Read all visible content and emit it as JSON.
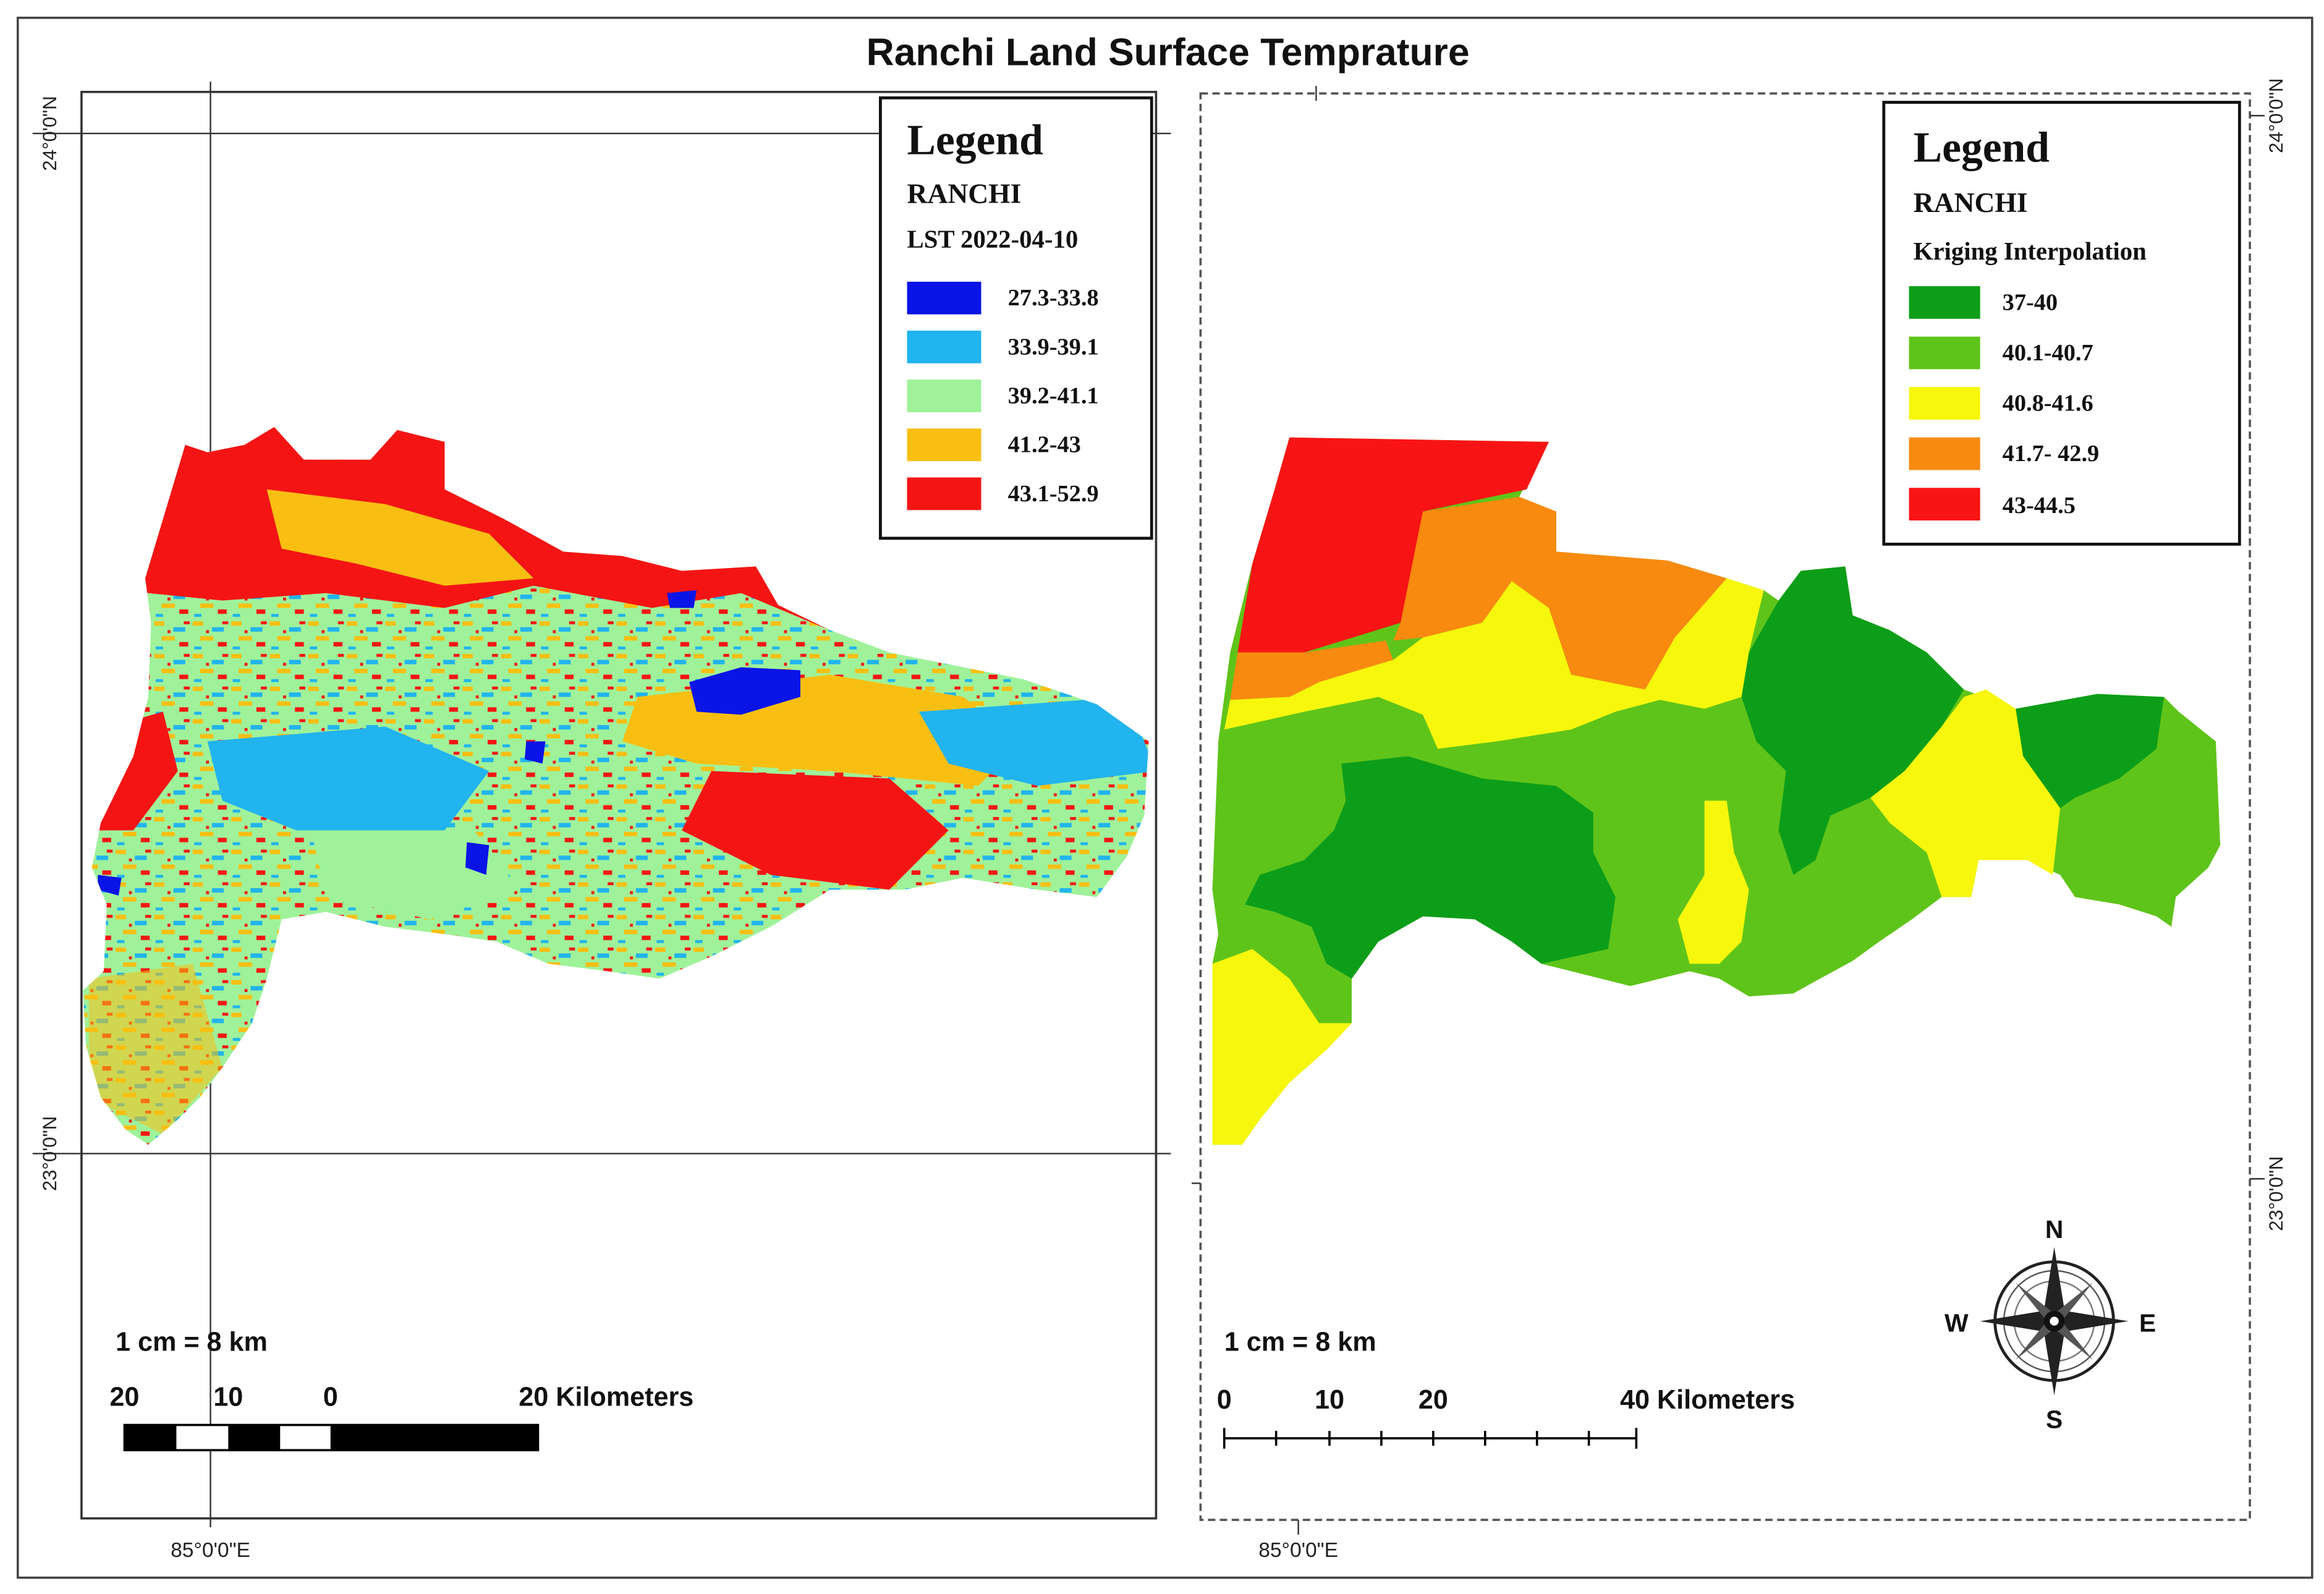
{
  "title": "Ranchi Land Surface Temprature",
  "left_map": {
    "legend": {
      "heading": "Legend",
      "place": "RANCHI",
      "subtitle": "LST 2022-04-10",
      "classes": [
        {
          "label": "27.3-33.8",
          "color": "#0a14e6"
        },
        {
          "label": "33.9-39.1",
          "color": "#21b4ee"
        },
        {
          "label": "39.2-41.1",
          "color": "#9ff29a"
        },
        {
          "label": "41.2-43",
          "color": "#f8bf12"
        },
        {
          "label": "43.1-52.9",
          "color": "#f41414"
        }
      ]
    },
    "lat_labels": [
      "24°0'0\"N",
      "23°0'0\"N"
    ],
    "lon_label": "85°0'0\"E",
    "scale_text": "1 cm = 8 km",
    "scalebar_labels": [
      "20",
      "10",
      "0",
      "20 Kilometers"
    ]
  },
  "right_map": {
    "legend": {
      "heading": "Legend",
      "place": "RANCHI",
      "subtitle": "Kriging Interpolation",
      "classes": [
        {
          "label": "37-40",
          "color": "#0d9e19"
        },
        {
          "label": "40.1-40.7",
          "color": "#5fc41a"
        },
        {
          "label": "40.8-41.6",
          "color": "#f6f70c"
        },
        {
          "label": "41.7- 42.9",
          "color": "#f98a10"
        },
        {
          "label": "43-44.5",
          "color": "#f81414"
        }
      ]
    },
    "lat_labels": [
      "24°0'0\"N",
      "23°0'0\"N"
    ],
    "lon_label": "85°0'0\"E",
    "scale_text": "1 cm = 8 km",
    "scalebar_labels": [
      "0",
      "10",
      "20",
      "40 Kilometers"
    ],
    "compass": {
      "n": "N",
      "s": "S",
      "e": "E",
      "w": "W"
    }
  }
}
